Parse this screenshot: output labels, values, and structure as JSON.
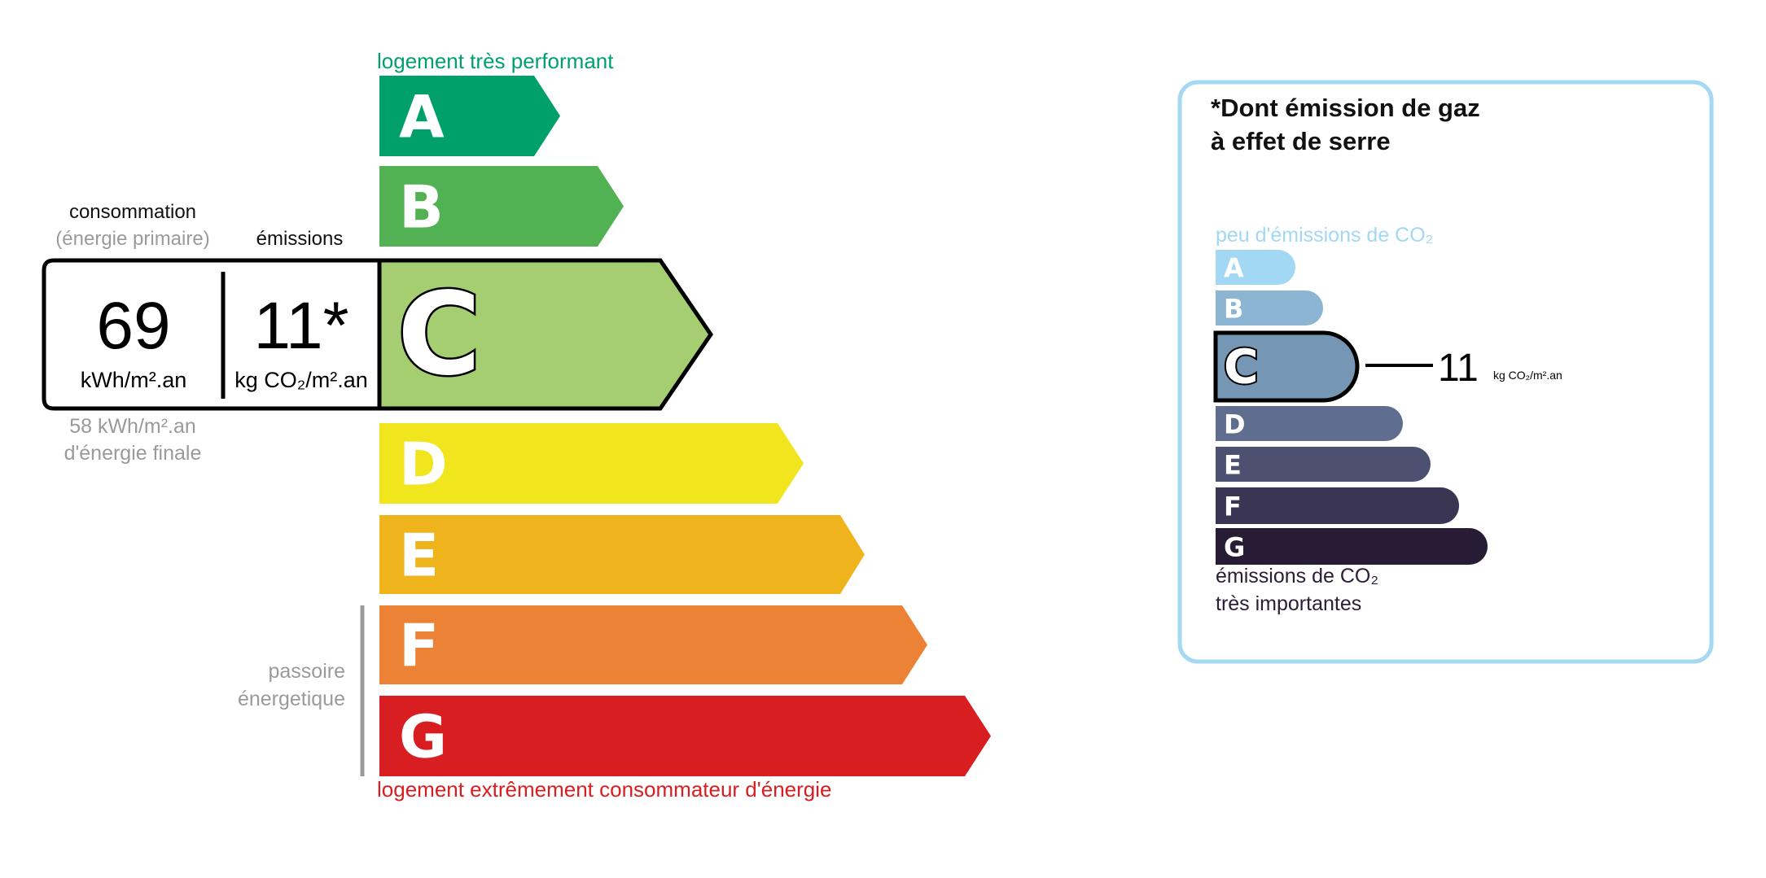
{
  "energy_label": {
    "top_caption": "logement très performant",
    "bottom_caption": "logement extrêmement consommateur d'énergie",
    "passoire_line1": "passoire",
    "passoire_line2": "énergetique",
    "consumption_header": "consommation",
    "consumption_subheader": "(énergie primaire)",
    "emissions_header": "émissions",
    "consumption_value": "69",
    "consumption_unit": "kWh/m².an",
    "emissions_value": "11*",
    "emissions_unit": "kg CO₂/m².an",
    "final_energy_line1": "58 kWh/m².an",
    "final_energy_line2": "d'énergie finale",
    "current_class": "C",
    "classes": [
      {
        "letter": "A",
        "color": "#00a06b"
      },
      {
        "letter": "B",
        "color": "#52b153"
      },
      {
        "letter": "C",
        "color": "#a5cd72"
      },
      {
        "letter": "D",
        "color": "#f1e61e"
      },
      {
        "letter": "E",
        "color": "#efb41b"
      },
      {
        "letter": "F",
        "color": "#ec8235"
      },
      {
        "letter": "G",
        "color": "#d81e20"
      }
    ],
    "colors": {
      "top_caption": "#00a06b",
      "bottom_caption": "#d81e20",
      "muted": "#9a9a9a"
    }
  },
  "ghg_panel": {
    "title_line1": "*Dont émission de gaz",
    "title_line2": "à effet de serre",
    "top_caption": "peu d'émissions de CO₂",
    "bottom_caption_line1": "émissions de CO₂",
    "bottom_caption_line2": "très importantes",
    "value": "11",
    "unit": "kg CO₂/m².an",
    "current_class": "C",
    "classes": [
      {
        "letter": "A",
        "color": "#a3d8f5"
      },
      {
        "letter": "B",
        "color": "#8cb4d3"
      },
      {
        "letter": "C",
        "color": "#7596b4"
      },
      {
        "letter": "D",
        "color": "#5f6e8e"
      },
      {
        "letter": "E",
        "color": "#4d5171"
      },
      {
        "letter": "F",
        "color": "#393552"
      },
      {
        "letter": "G",
        "color": "#281b35"
      }
    ],
    "colors": {
      "border": "#a5d8f3",
      "top_caption": "#a3d8f5",
      "bottom_caption": "#2a1d36"
    }
  }
}
